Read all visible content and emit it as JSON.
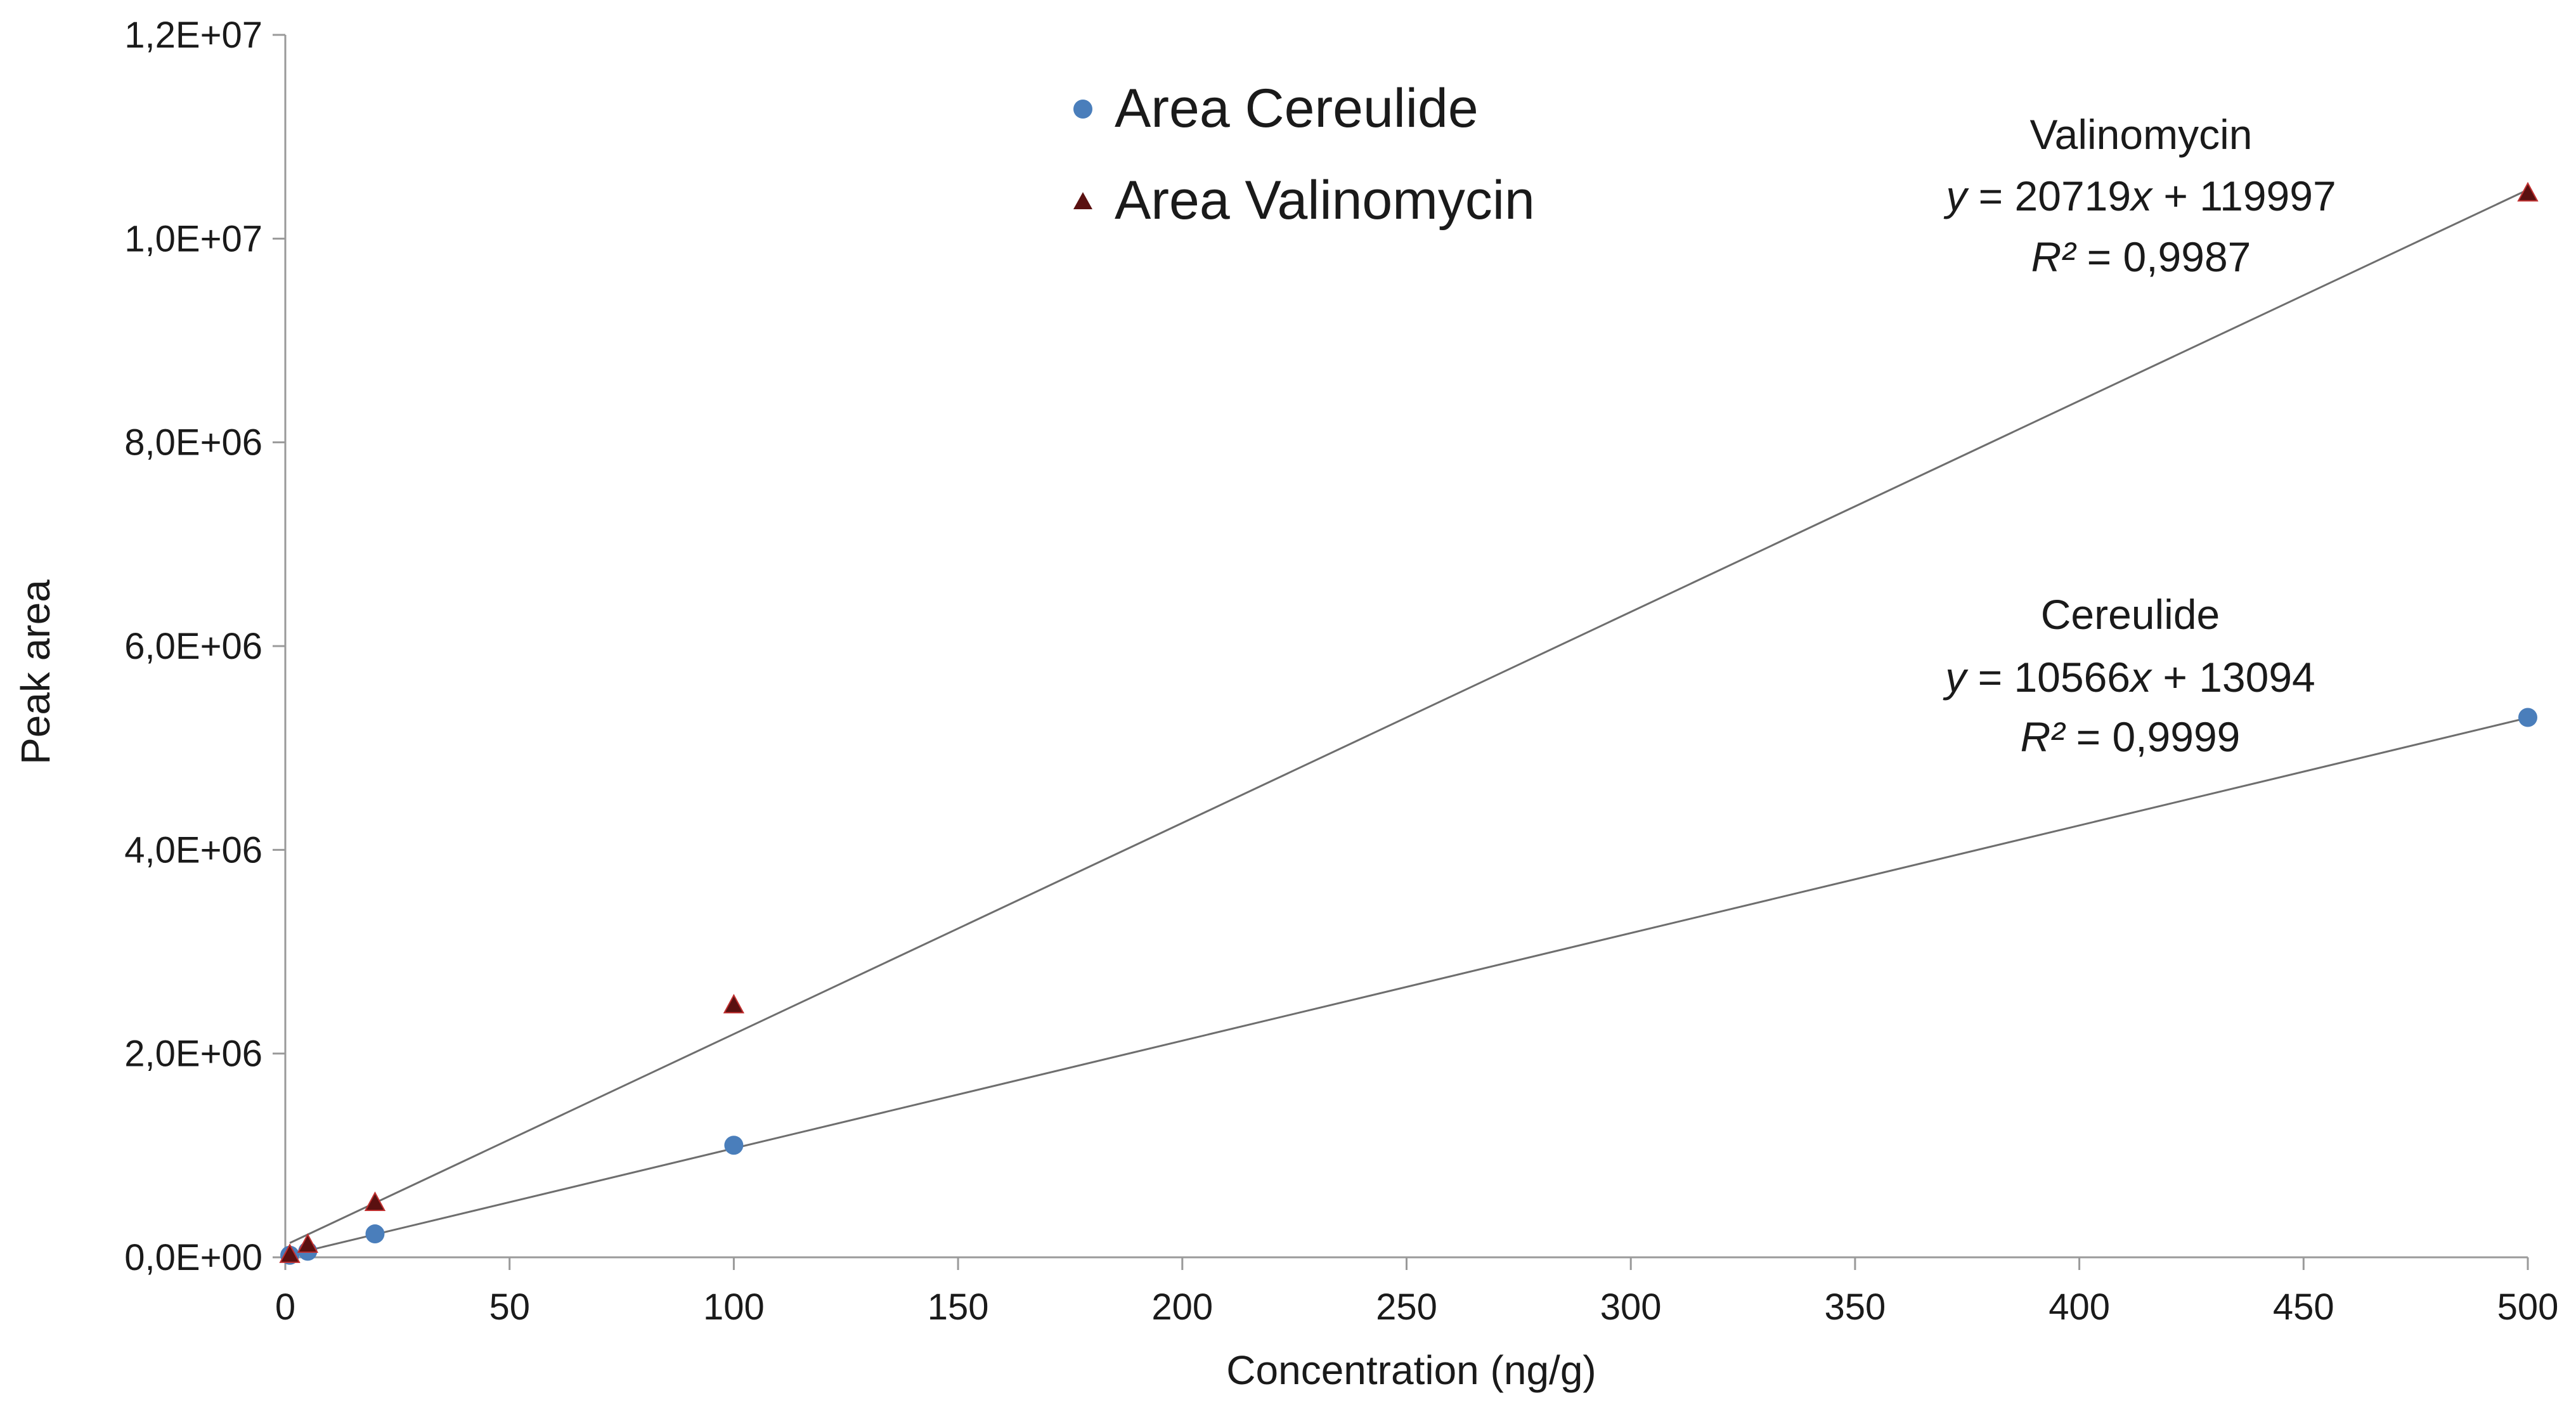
{
  "chart_data": {
    "type": "scatter",
    "xlabel": "Concentration (ng/g)",
    "ylabel": "Peak area",
    "xlim": [
      0,
      500
    ],
    "ylim": [
      0,
      12000000
    ],
    "x_ticks": [
      0,
      50,
      100,
      150,
      200,
      250,
      300,
      350,
      400,
      450,
      500
    ],
    "x_tick_labels": [
      "0",
      "50",
      "100",
      "150",
      "200",
      "250",
      "300",
      "350",
      "400",
      "450",
      "500"
    ],
    "y_ticks": [
      0,
      2000000,
      4000000,
      6000000,
      8000000,
      10000000,
      12000000
    ],
    "y_tick_labels": [
      "0,0E+00",
      "2,0E+06",
      "4,0E+06",
      "6,0E+06",
      "8,0E+06",
      "1,0E+07",
      "1,2E+07"
    ],
    "grid": false,
    "legend_position": "top-center",
    "series": [
      {
        "name": "Area Cereulide",
        "marker": "circle",
        "color": "#4a7ebb",
        "x": [
          1,
          5,
          20,
          100,
          500
        ],
        "y": [
          20000,
          60000,
          230000,
          1100000,
          5300000
        ],
        "trendline": {
          "slope": 10566,
          "intercept": 13094
        }
      },
      {
        "name": "Area Valinomycin",
        "marker": "triangle",
        "color": "#5a1010",
        "x": [
          1,
          5,
          20,
          100,
          500
        ],
        "y": [
          30000,
          130000,
          540000,
          2480000,
          10450000
        ],
        "trendline": {
          "slope": 20719,
          "intercept": 119997
        }
      }
    ],
    "annotations": [
      {
        "id": "valinomycin",
        "title": "Valinomycin",
        "eq_y": "y",
        "eq_x_part": " = 20719",
        "eq_x": "x",
        "eq_rest": " + 119997",
        "r2_label": "R²",
        "r2_value": " = 0,9987"
      },
      {
        "id": "cereulide",
        "title": "Cereulide",
        "eq_y": "y",
        "eq_x_part": " = 10566",
        "eq_x": "x",
        "eq_rest": " + 13094",
        "r2_label": "R²",
        "r2_value": " = 0,9999"
      }
    ]
  }
}
